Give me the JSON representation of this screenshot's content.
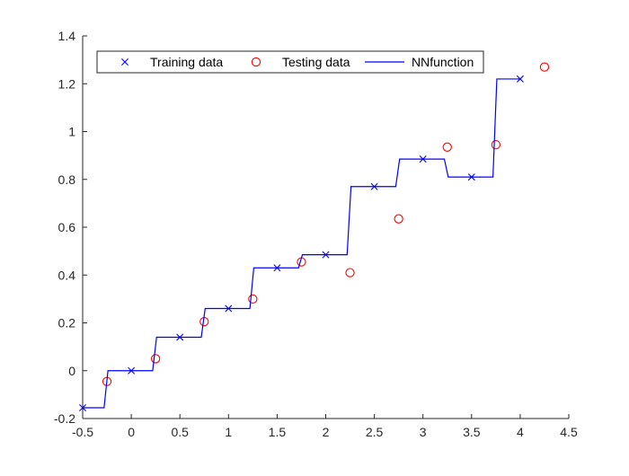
{
  "chart_data": {
    "type": "line",
    "title": "",
    "xlabel": "",
    "ylabel": "",
    "xlim": [
      -0.5,
      4.5
    ],
    "ylim": [
      -0.2,
      1.4
    ],
    "xticks": [
      -0.5,
      0,
      0.5,
      1,
      1.5,
      2,
      2.5,
      3,
      3.5,
      4,
      4.5
    ],
    "xtick_labels": [
      "-0.5",
      "0",
      "0.5",
      "1",
      "1.5",
      "2",
      "2.5",
      "3",
      "3.5",
      "4",
      "4.5"
    ],
    "yticks": [
      -0.2,
      0,
      0.2,
      0.4,
      0.6,
      0.8,
      1,
      1.2,
      1.4
    ],
    "ytick_labels": [
      "-0.2",
      "0",
      "0.2",
      "0.4",
      "0.6",
      "0.8",
      "1",
      "1.2",
      "1.4"
    ],
    "grid": false,
    "legend": {
      "placement": "top-left",
      "orientation": "horizontal"
    },
    "series": [
      {
        "name": "Training data",
        "kind": "scatter",
        "marker": "x",
        "color": "#0000ff",
        "x": [
          -0.5,
          0,
          0.5,
          1,
          1.5,
          2,
          2.5,
          3,
          3.5,
          4
        ],
        "y": [
          -0.155,
          0.0,
          0.14,
          0.26,
          0.43,
          0.485,
          0.77,
          0.885,
          0.81,
          1.22
        ]
      },
      {
        "name": "Testing data",
        "kind": "scatter",
        "marker": "o",
        "color": "#ff0000",
        "x": [
          -0.25,
          0.25,
          0.75,
          1.25,
          1.75,
          2.25,
          2.75,
          3.25,
          3.75,
          4.25
        ],
        "y": [
          -0.045,
          0.05,
          0.205,
          0.3,
          0.455,
          0.41,
          0.635,
          0.935,
          0.945,
          1.27
        ]
      },
      {
        "name": "NNfunction",
        "kind": "line",
        "color": "#0000ff",
        "x": [
          -0.5,
          -0.28,
          -0.24,
          0.22,
          0.26,
          0.72,
          0.76,
          1.22,
          1.26,
          1.72,
          1.76,
          2.22,
          2.26,
          2.72,
          2.76,
          3.22,
          3.26,
          3.72,
          3.76,
          4.0
        ],
        "y": [
          -0.155,
          -0.155,
          0.0,
          0.0,
          0.14,
          0.14,
          0.26,
          0.26,
          0.43,
          0.43,
          0.485,
          0.485,
          0.77,
          0.77,
          0.885,
          0.885,
          0.81,
          0.81,
          1.22,
          1.22
        ]
      }
    ]
  }
}
